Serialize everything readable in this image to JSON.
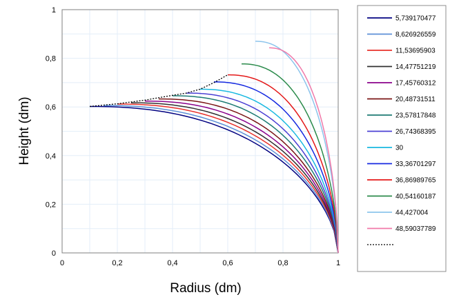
{
  "chart_data": {
    "type": "line",
    "title": "",
    "xlabel": "Radius (dm)",
    "ylabel": "Height (dm)",
    "xlim": [
      0,
      1
    ],
    "ylim": [
      0,
      1
    ],
    "xticks": [
      "0",
      "0,2",
      "0,4",
      "0,6",
      "0,8",
      "1"
    ],
    "yticks": [
      "0",
      "0,2",
      "0,4",
      "0,6",
      "0,8",
      "1"
    ],
    "grid": true,
    "legend_position": "right",
    "series": [
      {
        "name": "5,739170477",
        "color": "#000080",
        "x0": 0.1,
        "y0": 0.602
      },
      {
        "name": "8,626926559",
        "color": "#5b8fd6",
        "x0": 0.15,
        "y0": 0.606
      },
      {
        "name": "11,53695903",
        "color": "#e8302a",
        "x0": 0.2,
        "y0": 0.612
      },
      {
        "name": "14,47751219",
        "color": "#303030",
        "x0": 0.25,
        "y0": 0.617
      },
      {
        "name": "17,45760312",
        "color": "#8a008a",
        "x0": 0.3,
        "y0": 0.624
      },
      {
        "name": "20,48731511",
        "color": "#7a1414",
        "x0": 0.35,
        "y0": 0.633
      },
      {
        "name": "23,57817848",
        "color": "#1b7a72",
        "x0": 0.4,
        "y0": 0.646
      },
      {
        "name": "26,74368395",
        "color": "#4a3fd4",
        "x0": 0.45,
        "y0": 0.657
      },
      {
        "name": "30",
        "color": "#18b8e0",
        "x0": 0.5,
        "y0": 0.673
      },
      {
        "name": "33,36701297",
        "color": "#1428e0",
        "x0": 0.55,
        "y0": 0.703
      },
      {
        "name": "36,86989765",
        "color": "#e41818",
        "x0": 0.6,
        "y0": 0.732
      },
      {
        "name": "40,54160187",
        "color": "#2a8a4a",
        "x0": 0.65,
        "y0": 0.777
      },
      {
        "name": "44,427004",
        "color": "#8cc4ec",
        "x0": 0.7,
        "y0": 0.87
      },
      {
        "name": "48,59037789",
        "color": "#f078a8",
        "x0": 0.75,
        "y0": 0.843
      }
    ],
    "envelope": {
      "style": "dotted",
      "color": "#000000",
      "x": [
        0.1,
        0.2,
        0.3,
        0.4,
        0.45,
        0.5,
        0.55,
        0.6
      ],
      "y": [
        0.602,
        0.613,
        0.628,
        0.648,
        0.657,
        0.673,
        0.7,
        0.732
      ]
    }
  }
}
